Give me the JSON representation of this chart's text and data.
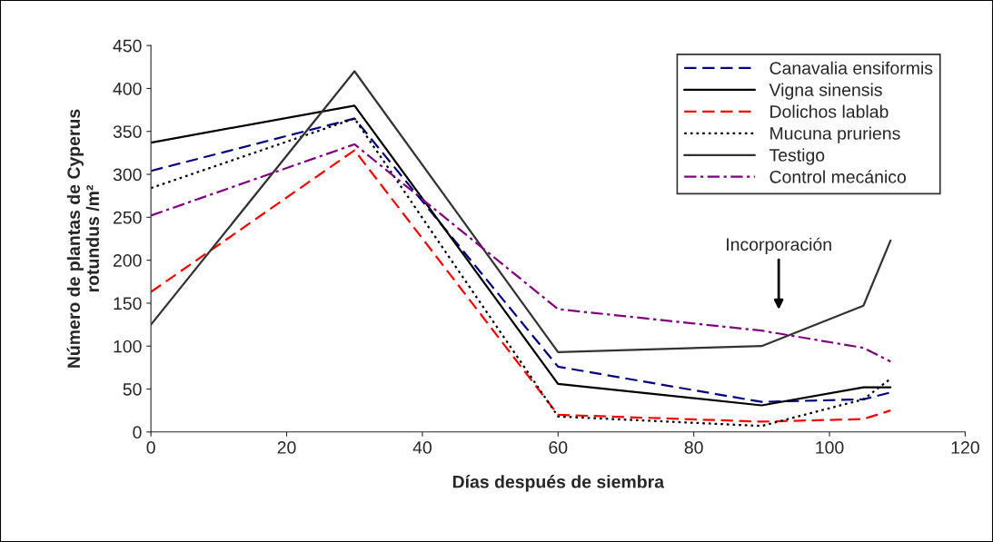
{
  "chart_data": {
    "type": "line",
    "xlabel": "Días después de siembra",
    "ylabel": "Número de plantas de Cyperus\nrotundus /m²",
    "x": [
      0,
      30,
      60,
      90,
      105,
      109
    ],
    "series": [
      {
        "name": "Canavalia ensiformis",
        "color": "#000080",
        "line_style": "dashed",
        "values": [
          304,
          365,
          76,
          35,
          38,
          46
        ]
      },
      {
        "name": "Vigna sinensis",
        "color": "#000000",
        "line_style": "solid",
        "values": [
          337,
          380,
          56,
          31,
          52,
          52
        ]
      },
      {
        "name": "Dolichos lablab",
        "color": "#ff0000",
        "line_style": "dashed",
        "values": [
          163,
          328,
          20,
          12,
          15,
          25
        ]
      },
      {
        "name": "Mucuna pruriens",
        "color": "#000000",
        "line_style": "dotted",
        "values": [
          284,
          365,
          18,
          7,
          38,
          62
        ]
      },
      {
        "name": "Testigo",
        "color": "#333333",
        "line_style": "solid",
        "values": [
          125,
          420,
          93,
          100,
          147,
          223
        ]
      },
      {
        "name": "Control mecánico",
        "color": "#800080",
        "line_style": "dashdot",
        "values": [
          252,
          335,
          143,
          118,
          98,
          82
        ]
      }
    ],
    "annotations": [
      "Incorporación"
    ],
    "xlim": [
      0,
      120
    ],
    "xticks": [
      0,
      20,
      40,
      60,
      80,
      100,
      120
    ],
    "ylim": [
      0,
      450
    ],
    "yticks": [
      0,
      50,
      100,
      150,
      200,
      250,
      300,
      350,
      400,
      450
    ],
    "grid": false,
    "legend": "top right",
    "marker": "none"
  }
}
